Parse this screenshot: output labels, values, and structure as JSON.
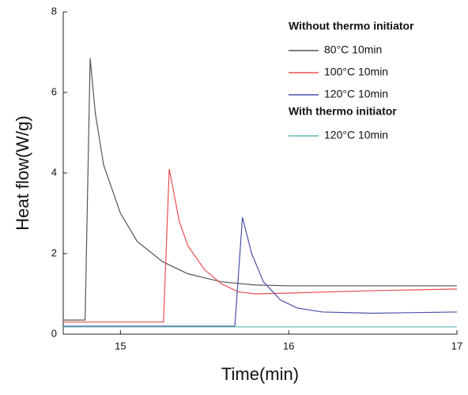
{
  "chart_data": {
    "type": "line",
    "x_label": "Time(min)",
    "y_label": "Heat flow(W/g)",
    "xlim": [
      14.66,
      17
    ],
    "ylim": [
      0,
      8
    ],
    "xticks": [
      15,
      16,
      17
    ],
    "yticks": [
      0,
      2,
      4,
      6,
      8
    ],
    "legend_groups": [
      {
        "title": "Without thermo initiator",
        "series": [
          0,
          1,
          2
        ]
      },
      {
        "title": "With thermo initiator",
        "series": [
          3
        ]
      }
    ],
    "series": [
      {
        "name": "80°C 10min",
        "color": "#555555",
        "x": [
          14.66,
          14.79,
          14.82,
          14.85,
          14.9,
          15.0,
          15.1,
          15.25,
          15.4,
          15.6,
          15.8,
          16.0,
          17.0
        ],
        "values": [
          0.35,
          0.35,
          6.85,
          5.5,
          4.2,
          3.0,
          2.3,
          1.8,
          1.5,
          1.3,
          1.22,
          1.2,
          1.2
        ]
      },
      {
        "name": "100°C 10min",
        "color": "#e8504f",
        "x": [
          14.66,
          15.256,
          15.29,
          15.35,
          15.4,
          15.5,
          15.6,
          15.7,
          15.8,
          16.0,
          16.5,
          17.0
        ],
        "values": [
          0.3,
          0.3,
          4.1,
          2.8,
          2.2,
          1.6,
          1.25,
          1.05,
          1.0,
          1.02,
          1.08,
          1.12
        ]
      },
      {
        "name": "120°C 10min",
        "color": "#4b4fa8",
        "x": [
          14.66,
          15.68,
          15.725,
          15.78,
          15.85,
          15.95,
          16.05,
          16.2,
          16.5,
          17.0
        ],
        "values": [
          0.2,
          0.2,
          2.9,
          2.0,
          1.3,
          0.85,
          0.65,
          0.55,
          0.52,
          0.55
        ]
      },
      {
        "name": "120°C 10min",
        "color": "#5fb8b0",
        "x": [
          14.66,
          17.0
        ],
        "values": [
          0.18,
          0.18
        ]
      }
    ]
  }
}
